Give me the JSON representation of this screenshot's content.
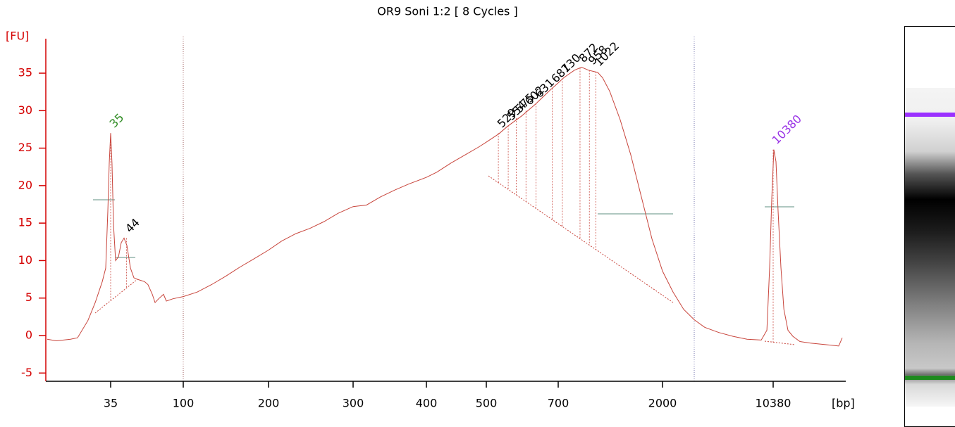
{
  "chart_data": {
    "type": "line",
    "title": "OR9 Soni 1:2  [ 8 Cycles ]",
    "ylabel": "[FU]",
    "xlabel": "[bp]",
    "color": "#c8453c",
    "axis_color": "#d40000",
    "xlim": [
      14,
      30600
    ],
    "xticks": [
      35,
      100,
      200,
      300,
      400,
      500,
      700,
      2000,
      10380
    ],
    "ylim": [
      -6.1,
      39.6
    ],
    "yticks": [
      -5,
      0,
      5,
      10,
      15,
      20,
      25,
      30,
      35
    ],
    "x": [
      14,
      16,
      19.6,
      21.7,
      25.2,
      28,
      31,
      32.6,
      33.6,
      34.3,
      35,
      35.7,
      36.5,
      37.6,
      39.2,
      40.8,
      42.5,
      44.3,
      46.6,
      49,
      51.6,
      57.1,
      60,
      63.9,
      66.5,
      70,
      75.2,
      78.3,
      85.9,
      100,
      112,
      126,
      141,
      158,
      177,
      200,
      213,
      228,
      244,
      261,
      279,
      300,
      316,
      334,
      353,
      373,
      400,
      416,
      438,
      462,
      487,
      500,
      530,
      552,
      590,
      630,
      673,
      700,
      741,
      824,
      885,
      950,
      1042,
      1094,
      1175,
      1306,
      1453,
      1617,
      1798,
      2000,
      2341,
      2740,
      3210,
      3750,
      4630,
      5710,
      7040,
      8690,
      9450,
      9850,
      10180,
      10490,
      10830,
      11170,
      11650,
      12170,
      12940,
      13930,
      15470,
      18090,
      22320,
      27540,
      29030
    ],
    "values": [
      -0.5,
      -0.7,
      -0.5,
      -0.3,
      2,
      4.4,
      7.2,
      9,
      16.6,
      23,
      27,
      23,
      14.7,
      10,
      10.5,
      12.4,
      13,
      12,
      9,
      7.7,
      7.5,
      7.2,
      6.8,
      5.5,
      4.4,
      4.9,
      5.5,
      4.6,
      4.9,
      5.2,
      5.8,
      6.8,
      7.9,
      9.1,
      10.2,
      11.4,
      12.6,
      13.6,
      14.3,
      15.2,
      16.3,
      17.2,
      17.4,
      18.5,
      19.4,
      20.2,
      21.1,
      21.8,
      23,
      24.1,
      25.2,
      25.8,
      26.9,
      27.9,
      29.3,
      30.9,
      32.7,
      33.7,
      34.4,
      35.4,
      35.8,
      35.4,
      35.1,
      34.4,
      32.6,
      28.8,
      24.1,
      18.5,
      12.9,
      8.6,
      5.8,
      3.5,
      2.1,
      1.1,
      0.4,
      -0.1,
      -0.5,
      -0.6,
      0.7,
      9.1,
      18.5,
      24.8,
      23.2,
      16.6,
      9.1,
      3.5,
      0.7,
      -0.1,
      -0.8,
      -1,
      -1.2,
      -1.4,
      -0.3
    ],
    "peaks": {
      "x": [
        35,
        44,
        529,
        554,
        575,
        602,
        631,
        681,
        730,
        872,
        958,
        1022,
        10380
      ],
      "values": [
        27,
        13,
        27,
        28,
        29,
        30,
        31,
        33,
        34.3,
        35.7,
        35.4,
        35.2,
        24.8
      ],
      "colors": [
        "#2e8b22",
        "#000000",
        "#000000",
        "#000000",
        "#000000",
        "#000000",
        "#000000",
        "#000000",
        "#000000",
        "#000000",
        "#000000",
        "#000000",
        "#9932e6"
      ]
    }
  }
}
